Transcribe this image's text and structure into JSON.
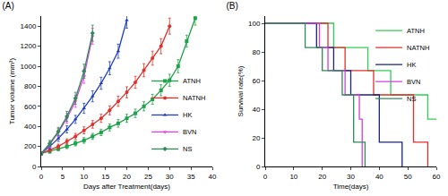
{
  "chart_data": [
    {
      "type": "line",
      "title": "(A)",
      "x_label": "Days after Treatment(days)",
      "y_label": "Tumor volume (mm³)",
      "xlim": [
        0,
        40
      ],
      "xticks": [
        0,
        5,
        10,
        15,
        20,
        25,
        30,
        35,
        40
      ],
      "ylim": [
        0,
        1500
      ],
      "yticks": [
        0,
        200,
        400,
        600,
        800,
        1000,
        1200,
        1400
      ],
      "legend": "lower right",
      "grid": false,
      "series": [
        {
          "name": "ATNH",
          "color": "#1fa24a",
          "marker": "square",
          "line_style": "solid",
          "x": [
            0,
            2,
            4,
            6,
            8,
            10,
            12,
            14,
            16,
            18,
            20,
            22,
            24,
            26,
            28,
            30,
            32,
            34,
            36
          ],
          "values": [
            130,
            150,
            175,
            200,
            230,
            260,
            300,
            340,
            390,
            430,
            480,
            530,
            600,
            670,
            760,
            860,
            1000,
            1250,
            1480
          ],
          "errors": [
            15,
            18,
            20,
            22,
            25,
            28,
            30,
            32,
            35,
            38,
            40,
            42,
            45,
            50,
            55,
            60,
            65,
            60,
            70
          ]
        },
        {
          "name": "NATNH",
          "color": "#e0302a",
          "marker": "circle",
          "line_style": "solid",
          "x": [
            0,
            2,
            4,
            6,
            8,
            10,
            12,
            14,
            16,
            18,
            20,
            22,
            24,
            26,
            28,
            30
          ],
          "values": [
            130,
            165,
            200,
            250,
            300,
            360,
            420,
            480,
            560,
            650,
            740,
            840,
            960,
            1080,
            1200,
            1400
          ],
          "errors": [
            15,
            20,
            22,
            25,
            30,
            35,
            38,
            40,
            45,
            50,
            55,
            60,
            65,
            70,
            75,
            80
          ]
        },
        {
          "name": "HK",
          "color": "#1f3fbf",
          "marker": "triangle-up",
          "line_style": "solid",
          "x": [
            0,
            2,
            4,
            6,
            8,
            10,
            12,
            14,
            16,
            18,
            20
          ],
          "values": [
            130,
            200,
            280,
            370,
            470,
            580,
            700,
            830,
            980,
            1150,
            1460
          ],
          "errors": [
            15,
            25,
            30,
            35,
            40,
            50,
            55,
            60,
            65,
            70,
            80
          ]
        },
        {
          "name": "BVN",
          "color": "#e040e0",
          "marker": "triangle-down",
          "line_style": "solid",
          "x": [
            0,
            2,
            4,
            6,
            8,
            10,
            12
          ],
          "values": [
            130,
            220,
            340,
            480,
            650,
            900,
            1300
          ],
          "errors": [
            15,
            30,
            40,
            50,
            60,
            70,
            80
          ]
        },
        {
          "name": "NS",
          "color": "#2e8b57",
          "marker": "diamond",
          "line_style": "solid",
          "x": [
            0,
            2,
            4,
            6,
            8,
            10,
            12
          ],
          "values": [
            130,
            230,
            350,
            500,
            680,
            950,
            1330
          ],
          "errors": [
            15,
            30,
            40,
            50,
            60,
            70,
            80
          ]
        }
      ]
    },
    {
      "type": "step",
      "title": "(B)",
      "x_label": "Time(days)",
      "y_label": "Survival rate(%)",
      "xlim": [
        0,
        60
      ],
      "xticks": [
        0,
        10,
        20,
        30,
        40,
        50,
        60
      ],
      "ylim": [
        0,
        105
      ],
      "yticks": [
        0,
        20,
        40,
        60,
        80,
        100
      ],
      "legend": "upper right",
      "grid": false,
      "series": [
        {
          "name": "ATNH",
          "color": "#33cc55",
          "line_style": "solid",
          "x": [
            0,
            24,
            36,
            44,
            57,
            60
          ],
          "values": [
            100,
            83,
            67,
            50,
            33,
            33
          ]
        },
        {
          "name": "NATNH",
          "color": "#e0302a",
          "line_style": "solid",
          "x": [
            0,
            22,
            28,
            38,
            52,
            57
          ],
          "values": [
            100,
            83,
            67,
            50,
            17,
            0
          ]
        },
        {
          "name": "HK",
          "color": "#1a237e",
          "line_style": "solid",
          "x": [
            0,
            18,
            24,
            30,
            40,
            48
          ],
          "values": [
            100,
            83,
            67,
            50,
            17,
            0
          ]
        },
        {
          "name": "BVN",
          "color": "#d040d8",
          "line_style": "solid",
          "x": [
            0,
            19,
            22,
            28,
            33,
            34
          ],
          "values": [
            100,
            83,
            67,
            50,
            33,
            0
          ]
        },
        {
          "name": "NS",
          "color": "#2e8b57",
          "line_style": "solid",
          "x": [
            0,
            14,
            20,
            27,
            31,
            35
          ],
          "values": [
            100,
            83,
            67,
            50,
            17,
            0
          ]
        }
      ]
    }
  ]
}
